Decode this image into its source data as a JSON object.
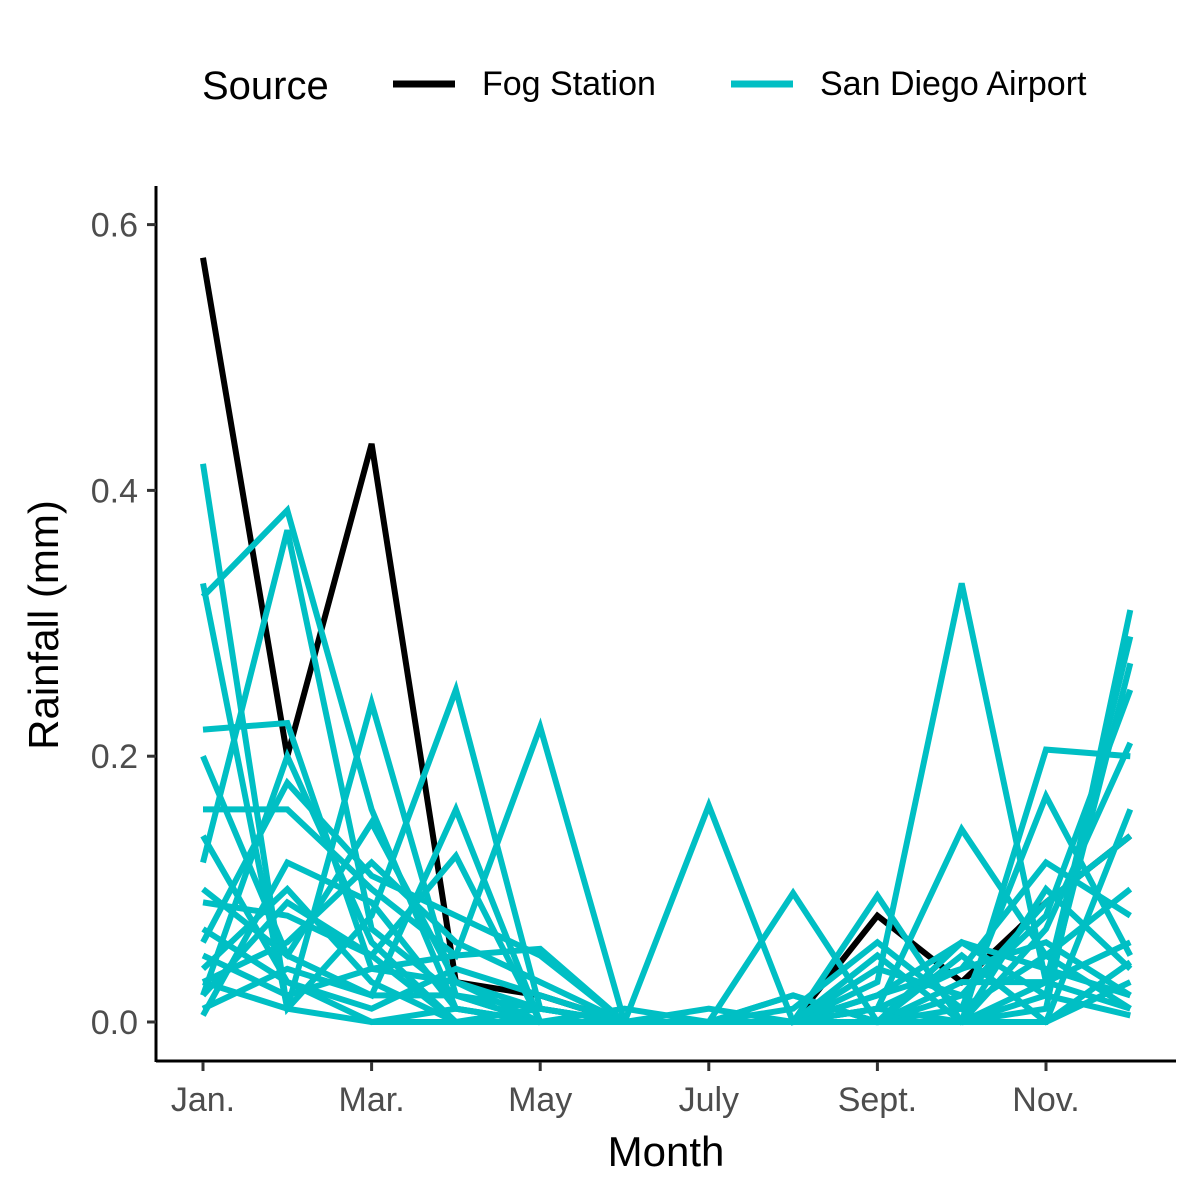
{
  "chart_data": {
    "type": "line",
    "xlabel": "Month",
    "ylabel": "Rainfall (mm)",
    "ylim": [
      -0.03,
      0.63
    ],
    "x": [
      1,
      2,
      3,
      4,
      5,
      6,
      7,
      8,
      9,
      10,
      11,
      12
    ],
    "x_ticks": [
      {
        "value": 1,
        "label": "Jan."
      },
      {
        "value": 3,
        "label": "Mar."
      },
      {
        "value": 5,
        "label": "May"
      },
      {
        "value": 7,
        "label": "July"
      },
      {
        "value": 9,
        "label": "Sept."
      },
      {
        "value": 11,
        "label": "Nov."
      }
    ],
    "y_ticks": [
      {
        "value": 0.0,
        "label": "0.0"
      },
      {
        "value": 0.2,
        "label": "0.2"
      },
      {
        "value": 0.4,
        "label": "0.4"
      },
      {
        "value": 0.6,
        "label": "0.6"
      }
    ],
    "legend": {
      "title": "Source",
      "position": "top",
      "items": [
        {
          "label": "Fog Station",
          "color": "#000000"
        },
        {
          "label": "San Diego Airport",
          "color": "#00BFC4"
        }
      ]
    },
    "series": [
      {
        "group": "San Diego Airport",
        "color": "#00BFC4",
        "values": [
          0.42,
          0.01,
          0.24,
          0.02,
          0.0,
          0.0,
          0.0,
          0.0,
          0.03,
          0.33,
          0.03,
          0.01
        ]
      },
      {
        "group": "San Diego Airport",
        "color": "#00BFC4",
        "values": [
          0.32,
          0.385,
          0.16,
          0.01,
          0.0,
          0.0,
          0.0,
          0.02,
          0.0,
          0.06,
          0.04,
          0.02
        ]
      },
      {
        "group": "San Diego Airport",
        "color": "#00BFC4",
        "values": [
          0.33,
          0.01,
          0.08,
          0.25,
          0.01,
          0.0,
          0.0,
          0.02,
          0.0,
          0.0,
          0.205,
          0.2
        ]
      },
      {
        "group": "San Diego Airport",
        "color": "#00BFC4",
        "values": [
          0.22,
          0.225,
          0.04,
          0.03,
          0.01,
          0.0,
          0.0,
          0.0,
          0.095,
          0.0,
          0.01,
          0.31
        ]
      },
      {
        "group": "San Diego Airport",
        "color": "#00BFC4",
        "values": [
          0.2,
          0.05,
          0.02,
          0.16,
          0.0,
          0.0,
          0.0,
          0.0,
          0.01,
          0.145,
          0.05,
          0.01
        ]
      },
      {
        "group": "San Diego Airport",
        "color": "#00BFC4",
        "values": [
          0.16,
          0.16,
          0.1,
          0.05,
          0.222,
          0.0,
          0.0,
          0.0,
          0.0,
          0.0,
          0.03,
          0.29
        ]
      },
      {
        "group": "San Diego Airport",
        "color": "#00BFC4",
        "values": [
          0.14,
          0.03,
          0.0,
          0.01,
          0.0,
          0.0,
          0.163,
          0.0,
          0.02,
          0.06,
          0.02,
          0.27
        ]
      },
      {
        "group": "San Diego Airport",
        "color": "#00BFC4",
        "values": [
          0.12,
          0.37,
          0.07,
          0.02,
          0.01,
          0.0,
          0.0,
          0.097,
          0.0,
          0.01,
          0.17,
          0.05
        ]
      },
      {
        "group": "San Diego Airport",
        "color": "#00BFC4",
        "values": [
          0.09,
          0.08,
          0.05,
          0.125,
          0.0,
          0.01,
          0.0,
          0.0,
          0.02,
          0.04,
          0.12,
          0.08
        ]
      },
      {
        "group": "San Diego Airport",
        "color": "#00BFC4",
        "values": [
          0.06,
          0.18,
          0.11,
          0.08,
          0.05,
          0.0,
          0.0,
          0.0,
          0.0,
          0.0,
          0.07,
          0.21
        ]
      },
      {
        "group": "San Diego Airport",
        "color": "#00BFC4",
        "values": [
          0.05,
          0.02,
          0.04,
          0.05,
          0.055,
          0.0,
          0.0,
          0.0,
          0.05,
          0.0,
          0.0,
          0.16
        ]
      },
      {
        "group": "San Diego Airport",
        "color": "#00BFC4",
        "values": [
          0.04,
          0.1,
          0.03,
          0.0,
          0.0,
          0.0,
          0.01,
          0.0,
          0.0,
          0.02,
          0.09,
          0.14
        ]
      },
      {
        "group": "San Diego Airport",
        "color": "#00BFC4",
        "values": [
          0.03,
          0.06,
          0.12,
          0.06,
          0.03,
          0.0,
          0.0,
          0.01,
          0.06,
          0.01,
          0.05,
          0.1
        ]
      },
      {
        "group": "San Diego Airport",
        "color": "#00BFC4",
        "values": [
          0.02,
          0.2,
          0.06,
          0.0,
          0.0,
          0.0,
          0.0,
          0.0,
          0.0,
          0.03,
          0.03,
          0.06
        ]
      },
      {
        "group": "San Diego Airport",
        "color": "#00BFC4",
        "values": [
          0.01,
          0.04,
          0.02,
          0.02,
          0.0,
          0.0,
          0.0,
          0.0,
          0.01,
          0.0,
          0.1,
          0.04
        ]
      },
      {
        "group": "San Diego Airport",
        "color": "#00BFC4",
        "values": [
          0.005,
          0.12,
          0.09,
          0.01,
          0.0,
          0.0,
          0.0,
          0.0,
          0.0,
          0.05,
          0.0,
          0.03
        ]
      },
      {
        "group": "San Diego Airport",
        "color": "#00BFC4",
        "values": [
          0.03,
          0.01,
          0.0,
          0.0,
          0.01,
          0.0,
          0.0,
          0.0,
          0.0,
          0.0,
          0.02,
          0.005
        ]
      },
      {
        "group": "San Diego Airport",
        "color": "#00BFC4",
        "values": [
          0.1,
          0.05,
          0.15,
          0.03,
          0.0,
          0.0,
          0.0,
          0.0,
          0.04,
          0.02,
          0.08,
          0.25
        ]
      },
      {
        "group": "San Diego Airport",
        "color": "#00BFC4",
        "values": [
          0.07,
          0.03,
          0.01,
          0.04,
          0.02,
          0.0,
          0.0,
          0.0,
          0.0,
          0.0,
          0.0,
          0.045
        ]
      },
      {
        "group": "San Diego Airport",
        "color": "#00BFC4",
        "values": [
          0.02,
          0.09,
          0.05,
          0.0,
          0.0,
          0.0,
          0.0,
          0.0,
          0.01,
          0.04,
          0.06,
          0.02
        ]
      },
      {
        "group": "Fog Station",
        "color": "#000000",
        "values": [
          0.575,
          0.2,
          0.435,
          0.03,
          0.02,
          0.0,
          0.0,
          0.0,
          0.08,
          0.03,
          0.09,
          0.14
        ]
      }
    ]
  }
}
